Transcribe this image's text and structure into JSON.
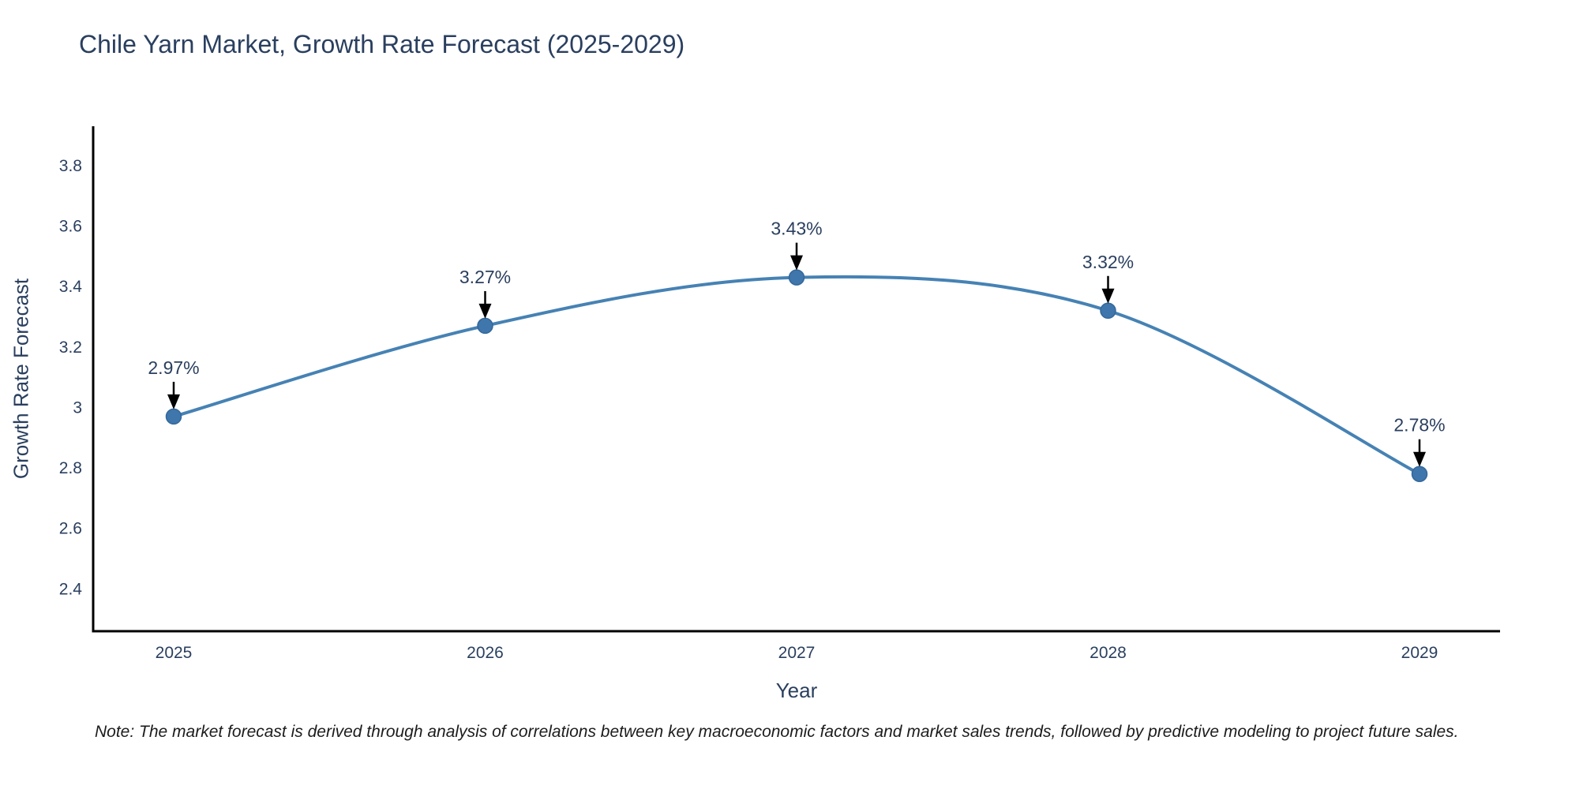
{
  "title": "Chile Yarn Market, Growth Rate Forecast (2025-2029)",
  "note": "Note: The market forecast is derived through analysis of correlations between key macroeconomic factors and market sales trends, followed by predictive modeling to project future sales.",
  "chart_data": {
    "type": "line",
    "title": "Chile Yarn Market, Growth Rate Forecast (2025-2029)",
    "x": [
      2025,
      2026,
      2027,
      2028,
      2029
    ],
    "values": [
      2.97,
      3.27,
      3.43,
      3.32,
      2.78
    ],
    "point_labels": [
      "2.97%",
      "3.27%",
      "3.43%",
      "3.32%",
      "2.78%"
    ],
    "xlabel": "Year",
    "ylabel": "Growth Rate Forecast",
    "yticks": [
      2.4,
      2.6,
      2.8,
      3,
      3.2,
      3.4,
      3.6,
      3.8
    ],
    "ylim": [
      2.26,
      3.93
    ],
    "line_shape": "spline",
    "grid": false,
    "legend": "none",
    "colors": {
      "line": "#4682b4",
      "marker": "#3f76ab",
      "marker_edge": "#34689c",
      "arrow": "#000000",
      "label_text": "#2a3f5f",
      "tick_text": "#2a3f5f",
      "axis": "#000000"
    }
  }
}
